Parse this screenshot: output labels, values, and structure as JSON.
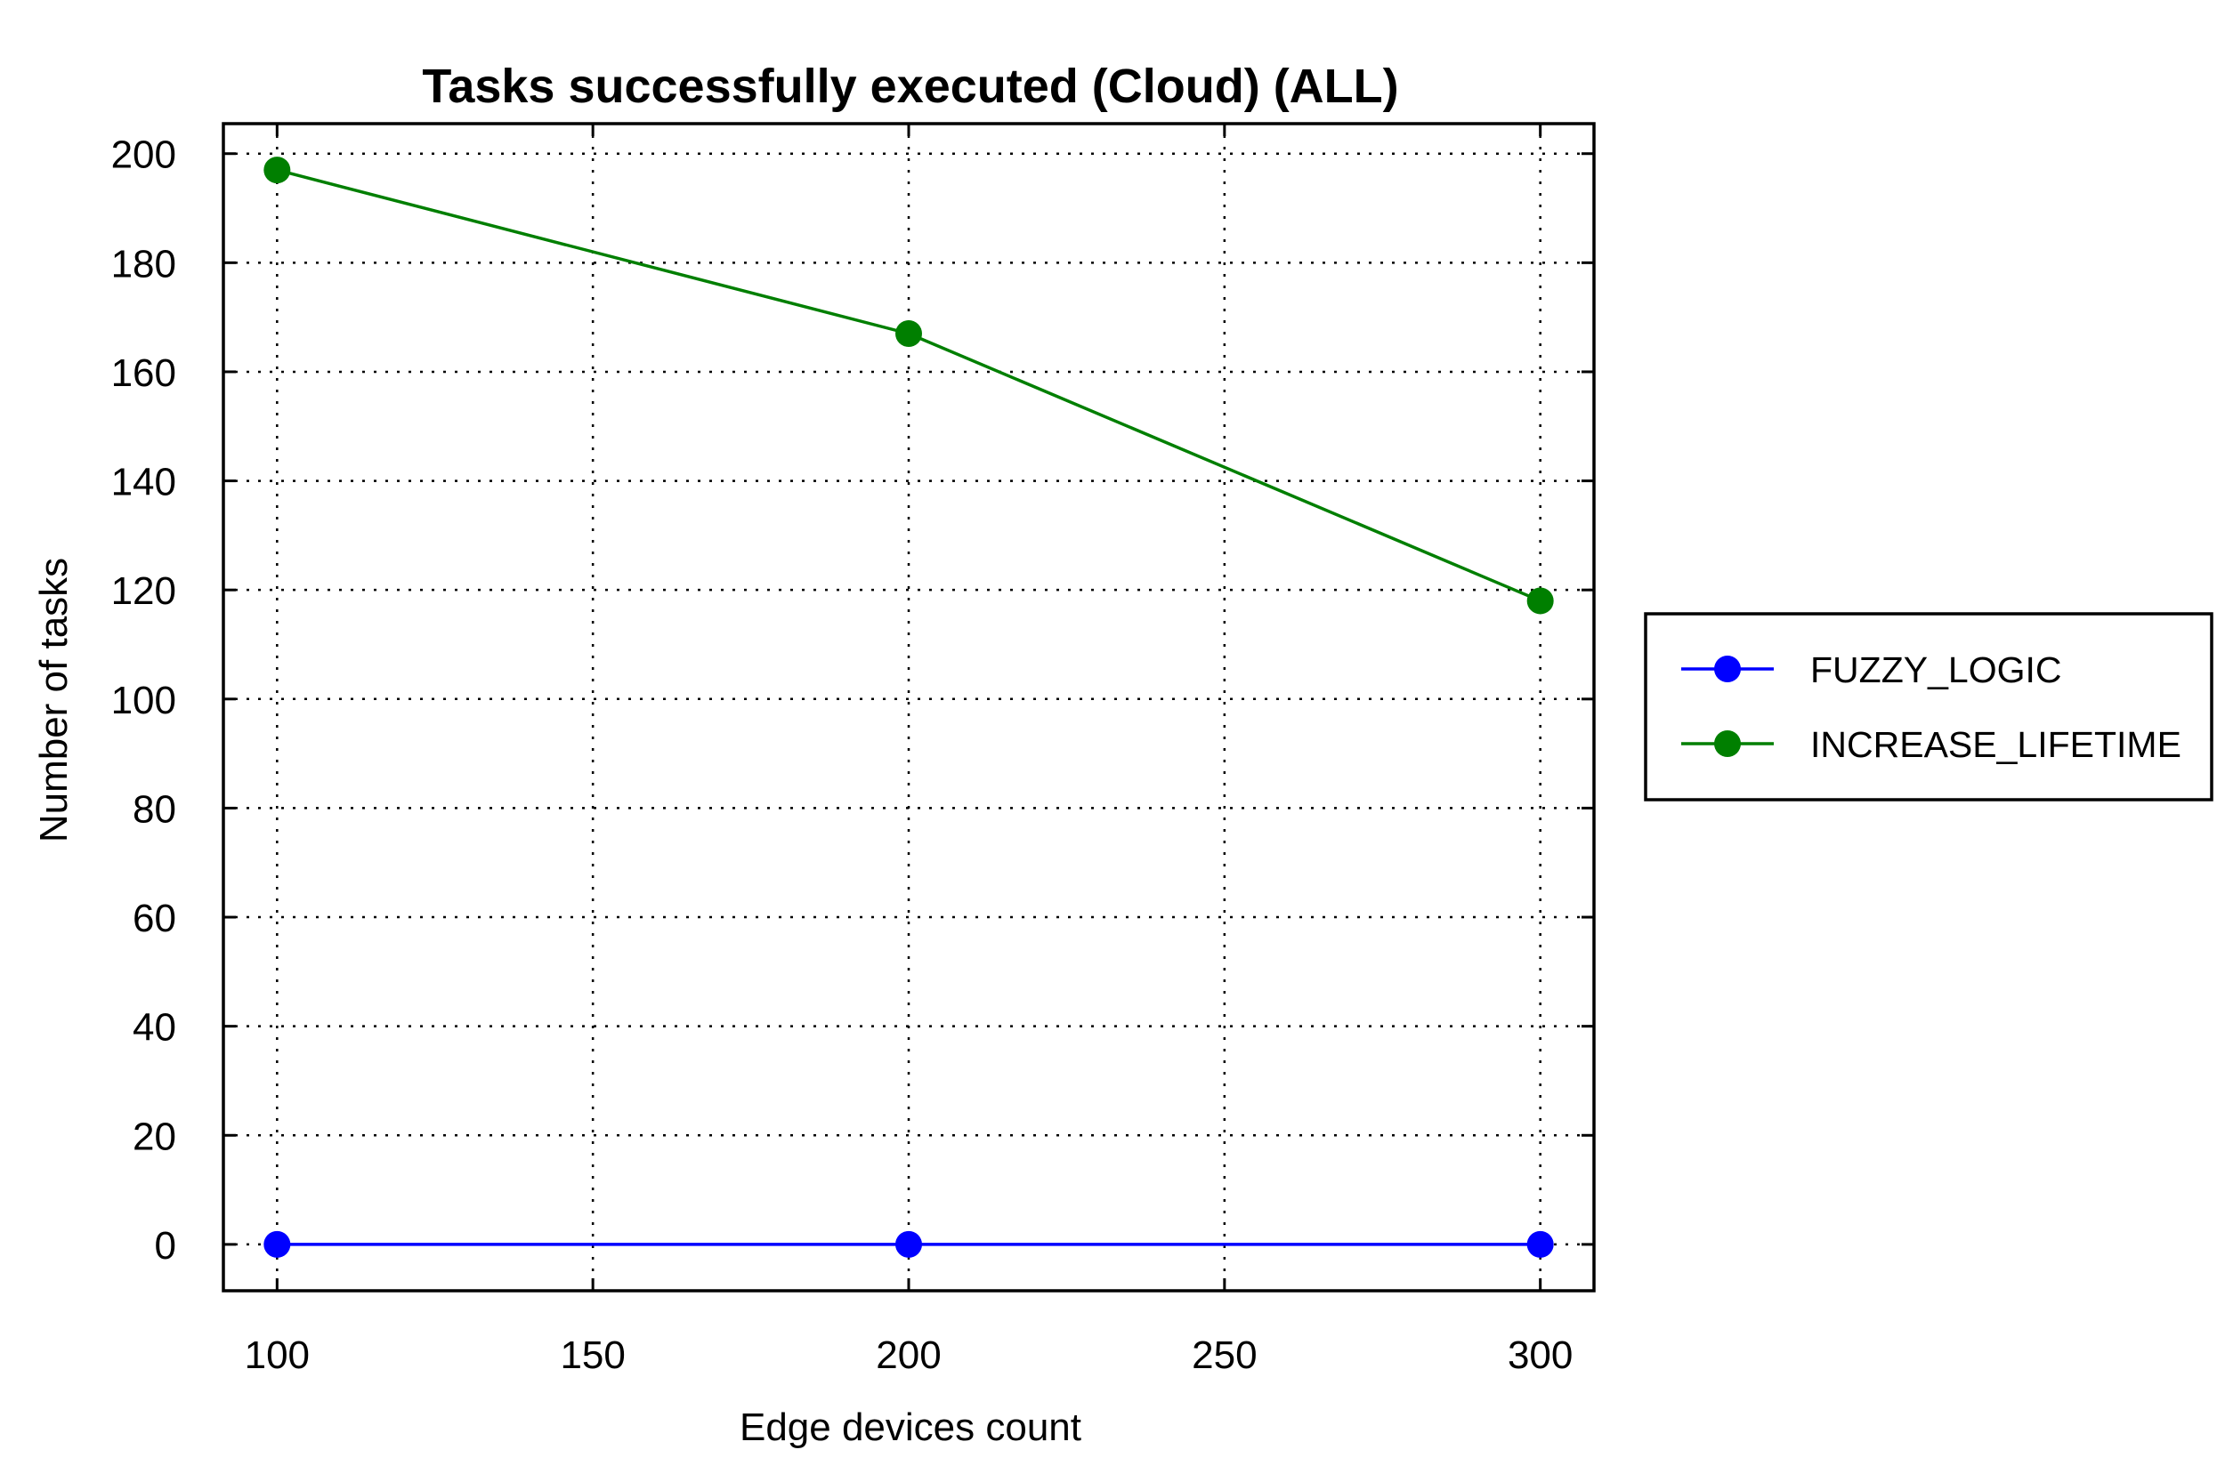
{
  "chart_data": {
    "type": "line",
    "title": "Tasks successfully executed (Cloud) (ALL)",
    "xlabel": "Edge devices count",
    "ylabel": "Number of tasks",
    "x": [
      100,
      200,
      300
    ],
    "xlim": [
      91.5,
      308.5
    ],
    "ylim": [
      -8.5,
      205.5
    ],
    "xticks": [
      100,
      150,
      200,
      250,
      300
    ],
    "yticks": [
      0,
      20,
      40,
      60,
      80,
      100,
      120,
      140,
      160,
      180,
      200
    ],
    "grid": true,
    "legend_position": "outside-right",
    "series": [
      {
        "name": "FUZZY_LOGIC",
        "color": "#0000ff",
        "marker": "circle",
        "values": [
          0,
          0,
          0
        ]
      },
      {
        "name": "INCREASE_LIFETIME",
        "color": "#007f00",
        "marker": "circle",
        "values": [
          197,
          167,
          118
        ]
      }
    ]
  }
}
